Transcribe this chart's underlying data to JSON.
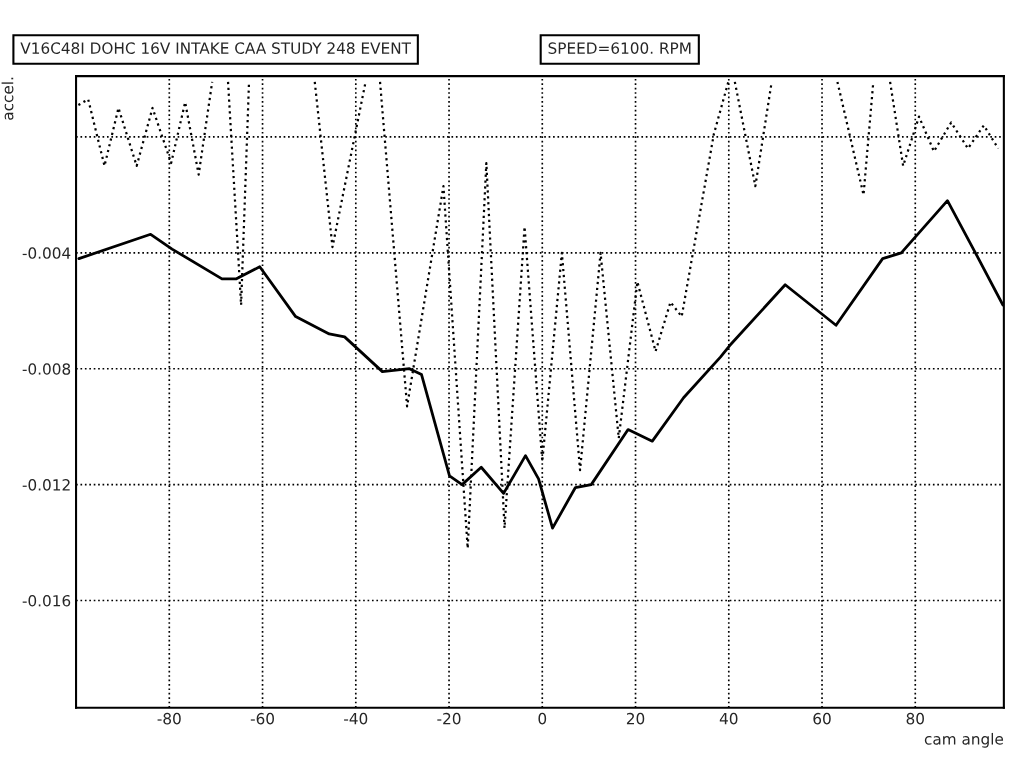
{
  "chart_data": {
    "type": "line",
    "title": "V16C48I DOHC 16V INTAKE CAA STUDY 248 EVENT",
    "subtitle": "SPEED=6100. RPM",
    "xlabel": "cam angle",
    "ylabel": "accel.",
    "xlim": [
      -100,
      99
    ],
    "ylim": [
      -0.0197,
      0.0021
    ],
    "xticks": [
      -80,
      -60,
      -40,
      -20,
      0,
      20,
      40,
      60,
      80
    ],
    "yticks": [
      {
        "value": 0,
        "label": null
      },
      -0.004,
      -0.008,
      -0.012,
      -0.016
    ],
    "grid": true,
    "series": [
      {
        "color": "#000000",
        "line_style": "dotted",
        "x": [
          -99.5,
          -97.4,
          -93.9,
          -90.9,
          -87,
          -83.6,
          -79.6,
          -76.6,
          -73.7,
          -70.8,
          -69,
          -67.4,
          -64.6,
          -62.9,
          -55,
          -48.8,
          -45,
          -37.9,
          -36,
          -34.8,
          -29,
          -21.2,
          -16,
          -12,
          -8.1,
          -3.8,
          0,
          4.2,
          8.1,
          12.5,
          16.4,
          20.4,
          24.3,
          27.5,
          29.9,
          36.8,
          39.9,
          40.6,
          41.3,
          45.7,
          49.2,
          56,
          63.3,
          68.9,
          71.0,
          73,
          74.6,
          77.4,
          80.8,
          84,
          87.7,
          91.3,
          94.7,
          97.8
        ],
        "values": [
          0.0011,
          0.0013,
          -0.001,
          0.001,
          -0.001,
          0.001,
          -0.0009,
          0.0012,
          -0.0013,
          0.0019,
          null,
          0.0019,
          -0.0058,
          0.0019,
          null,
          0.0019,
          -0.0038,
          0.0019,
          null,
          0.0019,
          -0.0093,
          -0.0017,
          -0.0142,
          -0.0009,
          -0.0135,
          -0.0031,
          -0.0112,
          -0.004,
          -0.0115,
          -0.004,
          -0.0104,
          -0.005,
          -0.0074,
          -0.0057,
          -0.0062,
          0.0001,
          0.0019,
          null,
          0.0019,
          -0.0017,
          0.0019,
          null,
          0.0019,
          -0.002,
          0.0019,
          null,
          0.0019,
          -0.001,
          0.0007,
          -0.0005,
          0.0005,
          -0.0004,
          0.0004,
          -0.0004
        ]
      },
      {
        "color": "#000000",
        "line_style": "solid",
        "x": [
          -99.4,
          -84,
          -79.4,
          -68.7,
          -65.7,
          -60.6,
          -52.9,
          -45.7,
          -42.4,
          -34.3,
          -28.5,
          -25.9,
          -19.9,
          -17.2,
          -13.1,
          -8.3,
          -3.6,
          -0.8,
          2.2,
          7.1,
          10.5,
          18.4,
          23.6,
          30.3,
          38.2,
          40.2,
          52.1,
          63,
          73,
          77,
          86.9,
          92.9,
          98.8
        ],
        "values": [
          -0.0042,
          -0.00336,
          -0.00387,
          -0.0049,
          -0.0049,
          -0.00448,
          -0.0062,
          -0.0068,
          -0.0069,
          -0.0081,
          -0.008,
          -0.0082,
          -0.0117,
          -0.012,
          -0.0114,
          -0.0123,
          -0.011,
          -0.0118,
          -0.0135,
          -0.0121,
          -0.012,
          -0.0101,
          -0.0105,
          -0.009,
          -0.0076,
          -0.0072,
          -0.0051,
          -0.0065,
          -0.0042,
          -0.004,
          -0.0022,
          -0.004,
          -0.0058
        ]
      }
    ]
  }
}
